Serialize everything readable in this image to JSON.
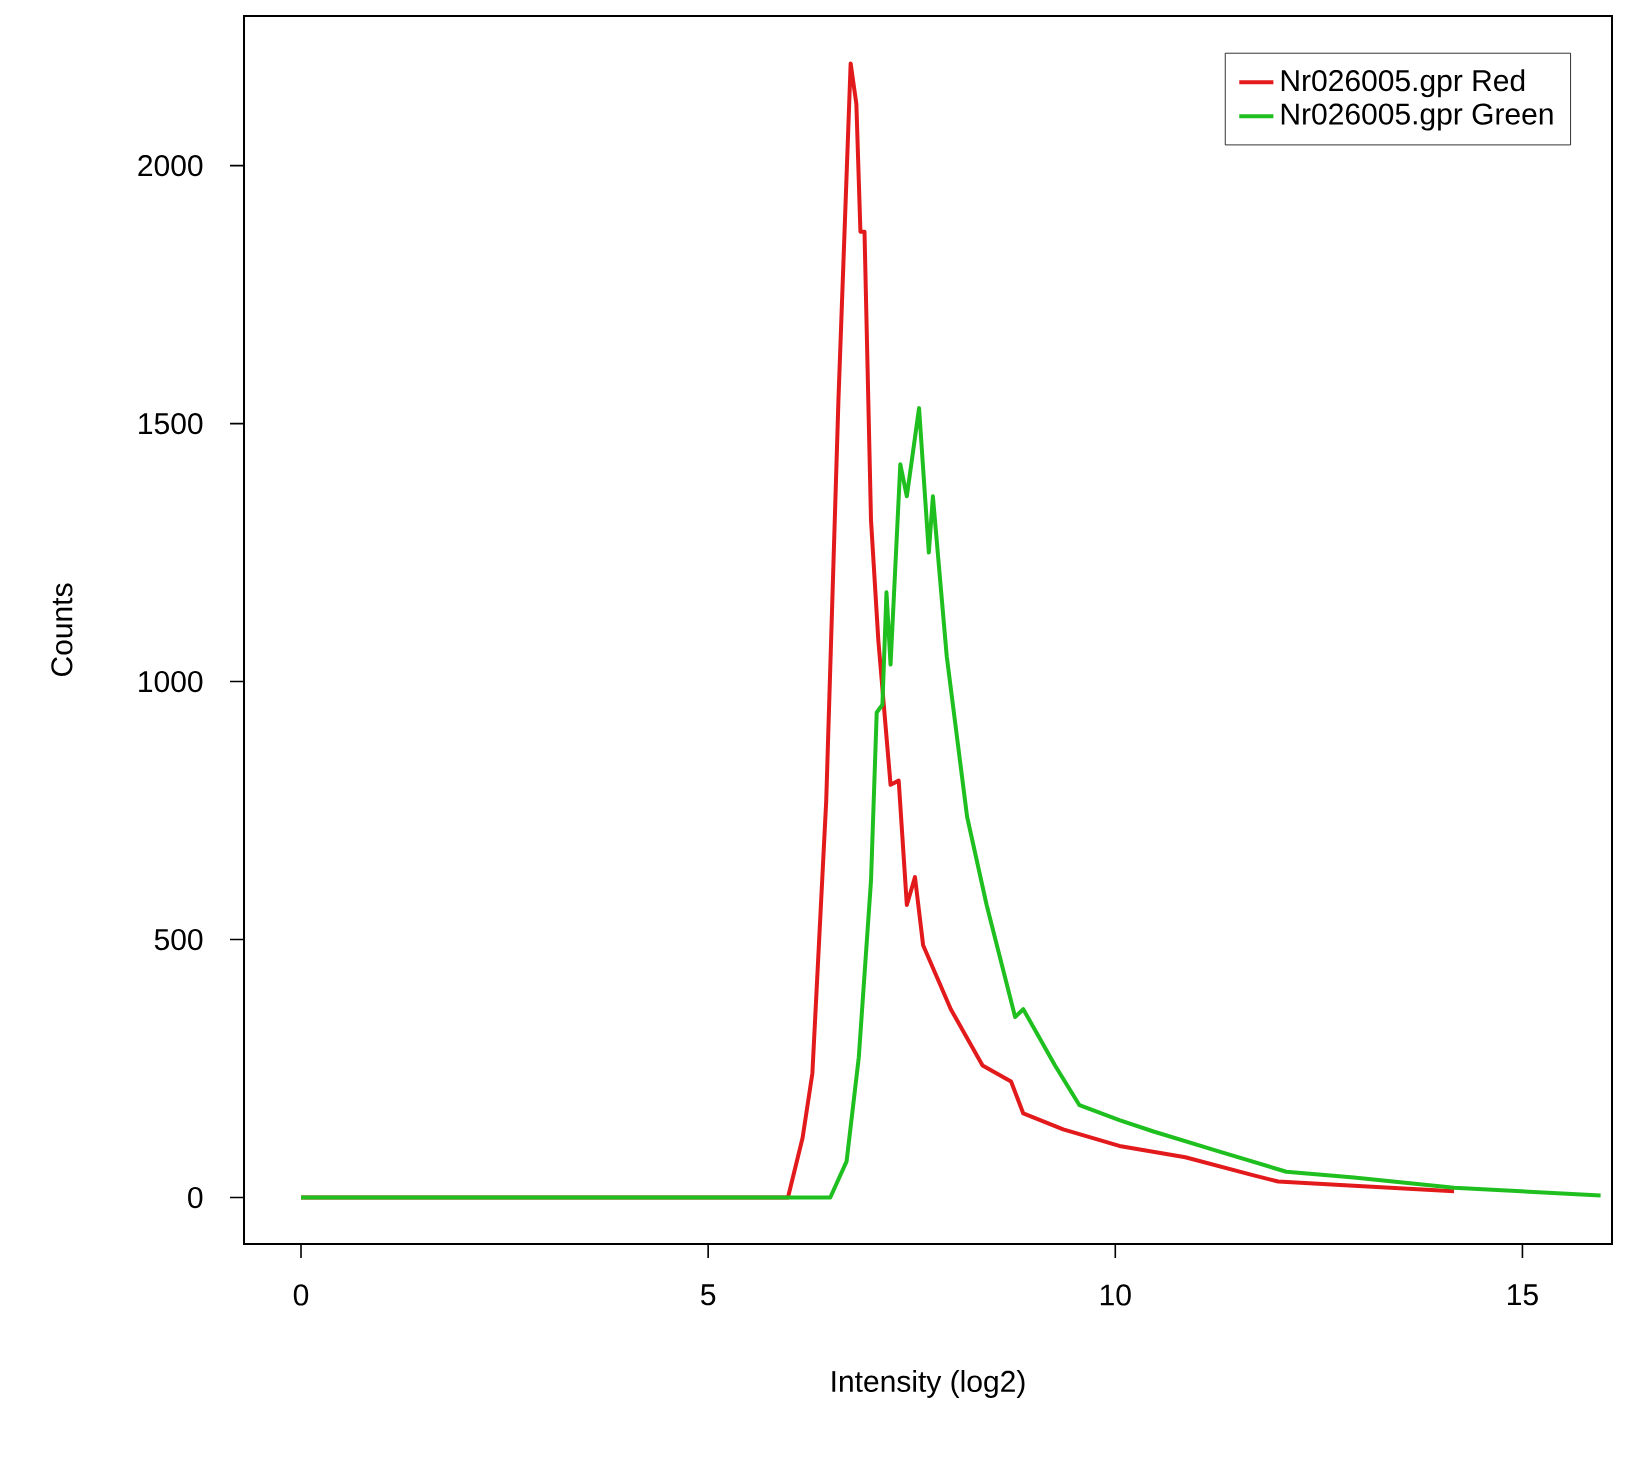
{
  "chart_data": {
    "type": "line",
    "xlabel": "Intensity (log2)",
    "ylabel": "Counts",
    "xlim": [
      -0.7,
      16.1
    ],
    "ylim": [
      -90,
      2290
    ],
    "xticks": [
      0,
      5,
      10,
      15
    ],
    "yticks": [
      0,
      500,
      1000,
      1500,
      2000
    ],
    "legend": "top right",
    "grid": false,
    "marker": "none",
    "line_style": "solid",
    "series": [
      {
        "name": "Nr026005.gpr Red",
        "color": "#e31a1c",
        "x": [
          0,
          5.98,
          6.16,
          6.28,
          6.45,
          6.6,
          6.75,
          6.82,
          6.87,
          6.92,
          7.0,
          7.09,
          7.24,
          7.34,
          7.44,
          7.54,
          7.64,
          7.98,
          8.37,
          8.72,
          8.87,
          9.36,
          10.05,
          10.86,
          11.7,
          12.0,
          12.93,
          14.16
        ],
        "values": [
          0,
          0,
          116,
          241,
          769,
          1546,
          2198,
          2120,
          1872,
          1872,
          1313,
          1080,
          800,
          808,
          567,
          621,
          489,
          365,
          256,
          225,
          163,
          132,
          100,
          78,
          43,
          31,
          23,
          12
        ]
      },
      {
        "name": "Nr026005.gpr Green",
        "color": "#1fbf1f",
        "x": [
          0,
          6.5,
          6.7,
          6.85,
          7.0,
          7.07,
          7.14,
          7.19,
          7.24,
          7.36,
          7.44,
          7.59,
          7.71,
          7.76,
          7.93,
          8.18,
          8.42,
          8.57,
          8.77,
          8.87,
          9.26,
          9.56,
          10.05,
          10.47,
          11.28,
          12.1,
          12.93,
          14.16,
          15.96
        ],
        "values": [
          0,
          0,
          70,
          272,
          614,
          940,
          955,
          1173,
          1033,
          1421,
          1359,
          1530,
          1250,
          1359,
          1049,
          738,
          567,
          474,
          350,
          365,
          256,
          179,
          150,
          128,
          89,
          50,
          39,
          19,
          4
        ]
      }
    ]
  }
}
